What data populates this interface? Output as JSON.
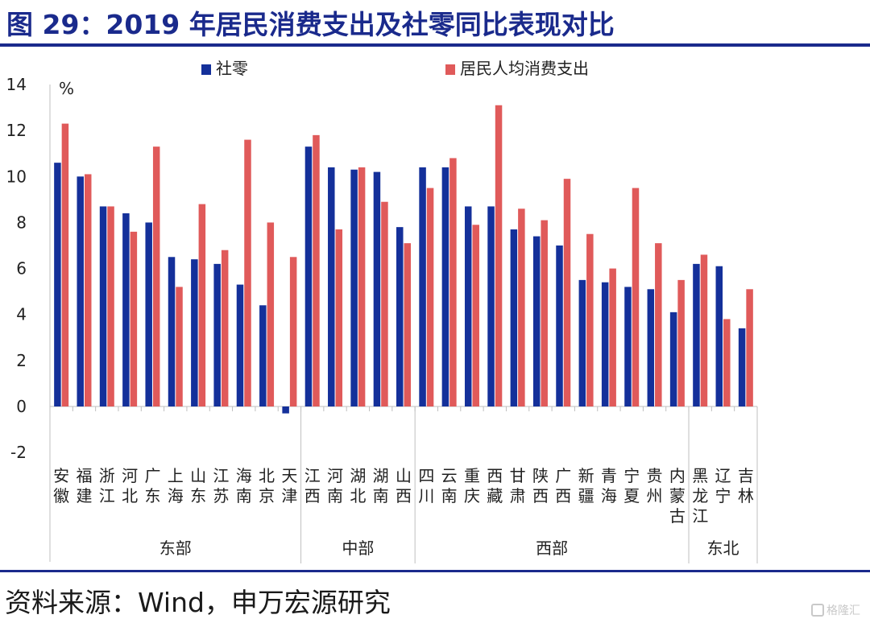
{
  "title": "图 29：2019 年居民消费支出及社零同比表现对比",
  "source": "资料来源：Wind，申万宏源研究",
  "watermark": "格隆汇",
  "colors": {
    "series1": "#14309a",
    "series2": "#e05a5a",
    "title": "#1a2a8c"
  },
  "chart_data": {
    "type": "bar",
    "ylabel": "%",
    "ylim": [
      -2,
      14
    ],
    "yticks": [
      -2,
      0,
      2,
      4,
      6,
      8,
      10,
      12,
      14
    ],
    "grid": false,
    "legend": "top",
    "categories": [
      {
        "chars": [
          "安",
          "徽"
        ]
      },
      {
        "chars": [
          "福",
          "建"
        ]
      },
      {
        "chars": [
          "浙",
          "江"
        ]
      },
      {
        "chars": [
          "河",
          "北"
        ]
      },
      {
        "chars": [
          "广",
          "东"
        ]
      },
      {
        "chars": [
          "上",
          "海"
        ]
      },
      {
        "chars": [
          "山",
          "东"
        ]
      },
      {
        "chars": [
          "江",
          "苏"
        ]
      },
      {
        "chars": [
          "海",
          "南"
        ]
      },
      {
        "chars": [
          "北",
          "京"
        ]
      },
      {
        "chars": [
          "天",
          "津"
        ]
      },
      {
        "chars": [
          "江",
          "西"
        ]
      },
      {
        "chars": [
          "河",
          "南"
        ]
      },
      {
        "chars": [
          "湖",
          "北"
        ]
      },
      {
        "chars": [
          "湖",
          "南"
        ]
      },
      {
        "chars": [
          "山",
          "西"
        ]
      },
      {
        "chars": [
          "四",
          "川"
        ]
      },
      {
        "chars": [
          "云",
          "南"
        ]
      },
      {
        "chars": [
          "重",
          "庆"
        ]
      },
      {
        "chars": [
          "西",
          "藏"
        ]
      },
      {
        "chars": [
          "甘",
          "肃"
        ]
      },
      {
        "chars": [
          "陕",
          "西"
        ]
      },
      {
        "chars": [
          "广",
          "西"
        ]
      },
      {
        "chars": [
          "新",
          "疆"
        ]
      },
      {
        "chars": [
          "青",
          "海"
        ]
      },
      {
        "chars": [
          "宁",
          "夏"
        ]
      },
      {
        "chars": [
          "贵",
          "州"
        ]
      },
      {
        "chars": [
          "内",
          "蒙",
          "古"
        ]
      },
      {
        "chars": [
          "黑",
          "龙",
          "江"
        ]
      },
      {
        "chars": [
          "辽",
          "宁"
        ]
      },
      {
        "chars": [
          "吉",
          "林"
        ]
      }
    ],
    "groups": [
      {
        "name": "东部",
        "count": 11
      },
      {
        "name": "中部",
        "count": 5
      },
      {
        "name": "西部",
        "count": 12
      },
      {
        "name": "东北",
        "count": 3
      }
    ],
    "series": [
      {
        "name": "社零",
        "color": "#14309a",
        "values": [
          10.6,
          10.0,
          8.7,
          8.4,
          8.0,
          6.5,
          6.4,
          6.2,
          5.3,
          4.4,
          -0.3,
          11.3,
          10.4,
          10.3,
          10.2,
          7.8,
          10.4,
          10.4,
          8.7,
          8.7,
          7.7,
          7.4,
          7.0,
          5.5,
          5.4,
          5.2,
          5.1,
          4.1,
          6.2,
          6.1,
          3.4
        ]
      },
      {
        "name": "居民人均消费支出",
        "color": "#e05a5a",
        "values": [
          12.3,
          10.1,
          8.7,
          7.6,
          11.3,
          5.2,
          8.8,
          6.8,
          11.6,
          8.0,
          6.5,
          11.8,
          7.7,
          10.4,
          8.9,
          7.1,
          9.5,
          10.8,
          7.9,
          13.1,
          8.6,
          8.1,
          9.9,
          7.5,
          6.0,
          9.5,
          7.1,
          5.5,
          6.6,
          3.8,
          5.1
        ]
      }
    ]
  }
}
